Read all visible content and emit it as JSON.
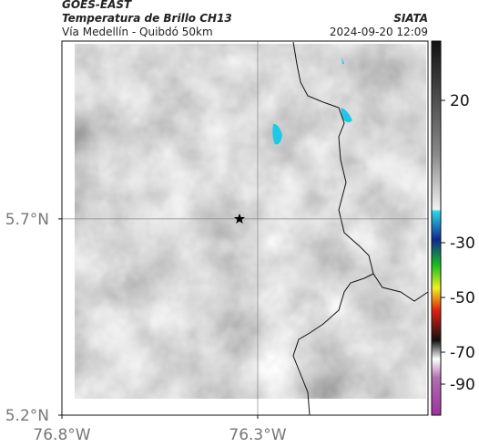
{
  "header": {
    "satellite": "GOES-EAST",
    "product": "Temperatura de Brillo CH13",
    "route": "Vía Medellín - Quibdó 50km",
    "source": "SIATA",
    "timestamp": "2024-09-20 12:09"
  },
  "map": {
    "xlim": [
      -76.8,
      -75.865
    ],
    "ylim": [
      5.2,
      6.153
    ],
    "xticks": [
      {
        "value": -76.8,
        "label": "76.8°W"
      },
      {
        "value": -76.3,
        "label": "76.3°W"
      }
    ],
    "yticks": [
      {
        "value": 5.7,
        "label": "5.7°N"
      },
      {
        "value": 5.2,
        "label": "5.2°N"
      }
    ]
  },
  "colorbar": {
    "ticks": [
      20,
      -30,
      -50,
      -70,
      -90
    ]
  }
}
